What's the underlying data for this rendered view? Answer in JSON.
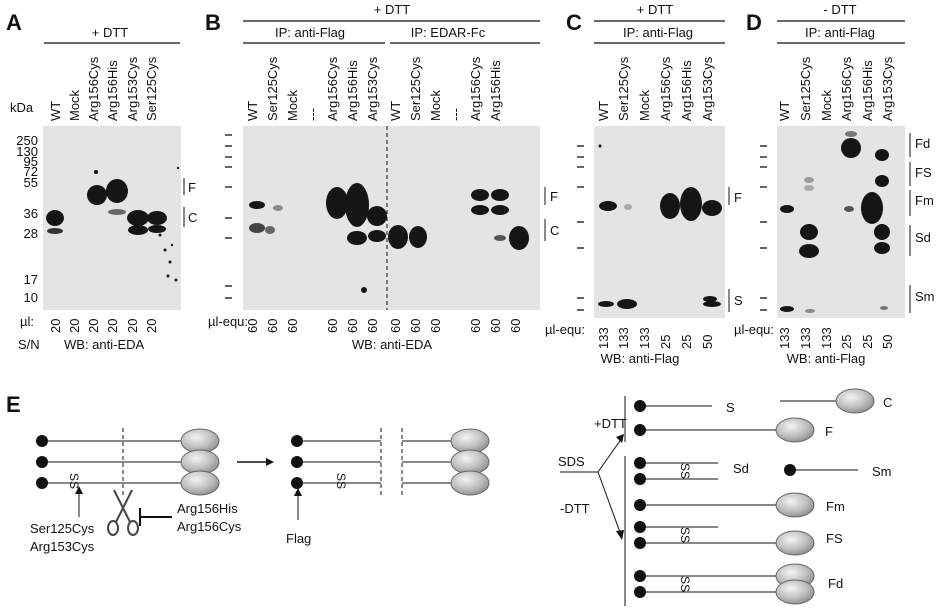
{
  "panels": {
    "A": {
      "letter": "A",
      "header": "+ DTT",
      "lanes": [
        "WT",
        "Mock",
        "Arg156Cys",
        "Arg156His",
        "Arg153Cys",
        "Ser125Cys"
      ],
      "kda_title": "kDa",
      "markers": [
        "250",
        "130",
        "95",
        "72",
        "55",
        "36",
        "28",
        "17",
        "10"
      ],
      "ul_label": "µl:",
      "volumes": [
        "20",
        "20",
        "20",
        "20",
        "20",
        "20"
      ],
      "footer_left": "S/N",
      "footer_right": "WB: anti-EDA",
      "band_labels": [
        "F",
        "C"
      ]
    },
    "B": {
      "letter": "B",
      "header": "+ DTT",
      "ip_left": "IP: anti-Flag",
      "ip_right": "IP: EDAR-Fc",
      "lanes_left": [
        "WT",
        "Ser125Cys",
        "Mock",
        "---",
        "Arg156Cys",
        "Arg156His",
        "Arg153Cys"
      ],
      "lanes_right": [
        "WT",
        "Ser125Cys",
        "Mock",
        "---",
        "Arg156Cys",
        "Arg156His"
      ],
      "ul_label": "µl-equ:",
      "volumes_left": [
        "60",
        "60",
        "60",
        "60",
        "60",
        "60"
      ],
      "volumes_right": [
        "60",
        "60",
        "60",
        "60",
        "60",
        "60"
      ],
      "footer": "WB: anti-EDA",
      "band_labels": [
        "F",
        "C"
      ]
    },
    "C": {
      "letter": "C",
      "header": "+ DTT",
      "ip": "IP: anti-Flag",
      "lanes": [
        "WT",
        "Ser125Cys",
        "Mock",
        "Arg156Cys",
        "Arg156His",
        "Arg153Cys"
      ],
      "ul_label": "µl-equ:",
      "volumes": [
        "133",
        "133",
        "133",
        "25",
        "25",
        "50"
      ],
      "footer": "WB: anti-Flag",
      "band_labels": [
        "F",
        "S"
      ]
    },
    "D": {
      "letter": "D",
      "header": "- DTT",
      "ip": "IP: anti-Flag",
      "lanes": [
        "WT",
        "Ser125Cys",
        "Mock",
        "Arg156Cys",
        "Arg156His",
        "Arg153Cys"
      ],
      "ul_label": "µl-equ:",
      "volumes": [
        "133",
        "133",
        "133",
        "25",
        "25",
        "50"
      ],
      "footer": "WB: anti-Flag",
      "band_labels": [
        "Fd",
        "FS",
        "Fm",
        "Sd",
        "Sm"
      ]
    }
  },
  "schematic": {
    "letter": "E",
    "mutations_left": [
      "Ser125Cys",
      "Arg153Cys"
    ],
    "mutations_right": [
      "Arg156His",
      "Arg156Cys"
    ],
    "flag": "Flag",
    "ss": "SS",
    "sds": "SDS",
    "plus_dtt": "+DTT",
    "minus_dtt": "-DTT",
    "products": [
      "S",
      "C",
      "F",
      "Sd",
      "Sm",
      "Fm",
      "FS",
      "Fd"
    ]
  }
}
